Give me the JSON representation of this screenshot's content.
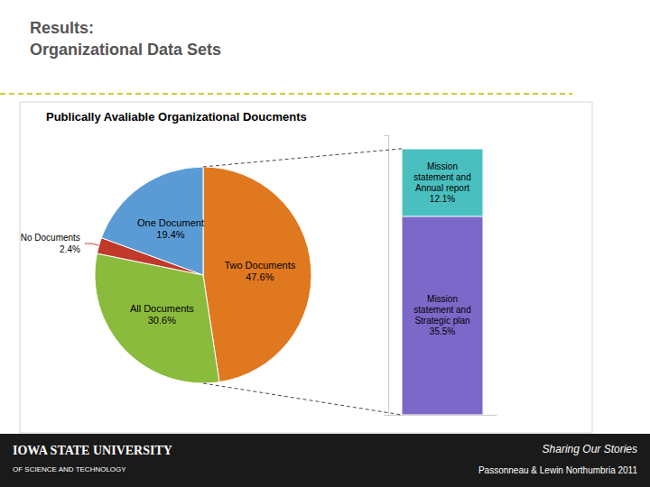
{
  "chart_data": [
    {
      "type": "pie",
      "title": "Results:\nOrganizational Data Sets",
      "subtitle": "Publically Avaliable Organizational Doucments",
      "categories": [
        "Two Documents",
        "All Documents",
        "No Documents",
        "One Document"
      ],
      "values": [
        47.6,
        30.6,
        2.4,
        19.4
      ],
      "value_labels": [
        "47.6%",
        "30.6%",
        "2.4%",
        "19.4%"
      ],
      "colors": [
        "#E07820",
        "#8BBB3C",
        "#C0392B",
        "#5B9BD5"
      ],
      "data_labels": true,
      "legend": false,
      "annotations": [
        "IOWA STATE UNIVERSITY",
        "OF SCIENCE AND TECHNOLOGY",
        "Sharing Our Stories",
        "Passonneau & Lewin Northumbria 2011"
      ]
    },
    {
      "type": "bar",
      "stacked": true,
      "categories": [
        null
      ],
      "series": [
        {
          "name": "Mission\nstatement and\nStrategic plan",
          "color": "#7B68C8",
          "values": [
            35.5
          ],
          "value_labels": [
            "35.5%"
          ]
        },
        {
          "name": "Mission\nstatement and\nAnnual report",
          "color": "#4ABFBF",
          "values": [
            12.1
          ],
          "value_labels": [
            "12.1%"
          ]
        }
      ],
      "ylim": [
        0,
        50
      ],
      "yticks": [
        0,
        50
      ],
      "tick_labels": false,
      "grid": false,
      "legend": false,
      "data_labels": true
    }
  ]
}
